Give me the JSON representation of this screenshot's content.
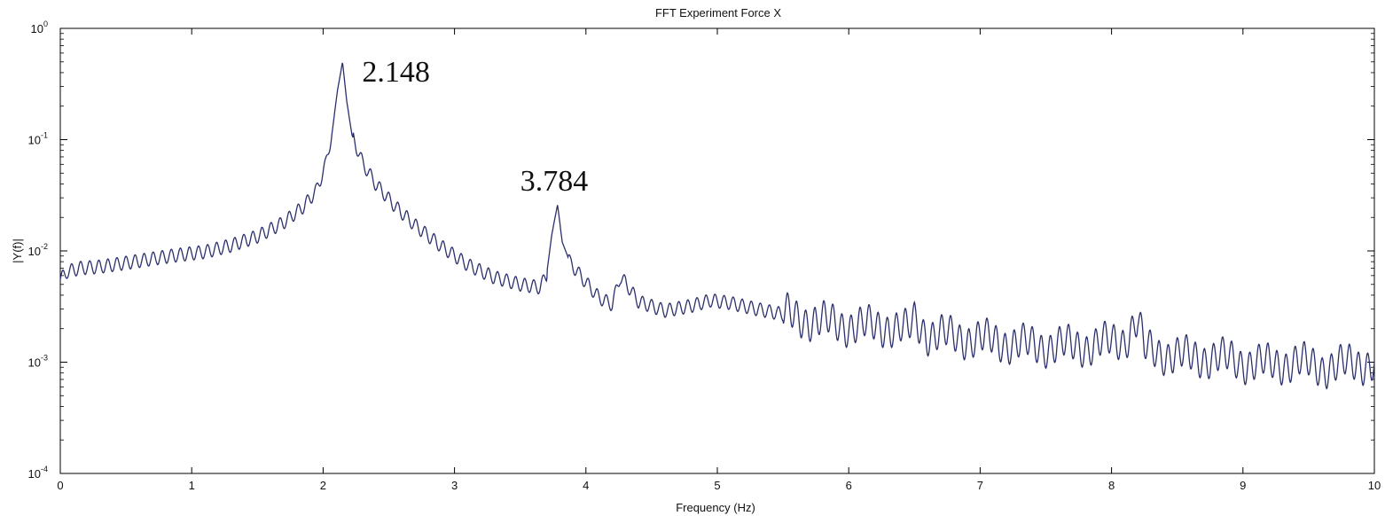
{
  "chart_data": {
    "type": "line",
    "title": "FFT Experiment Force X",
    "xlabel": "Frequency (Hz)",
    "ylabel": "|Y(f)|",
    "xlim": [
      0,
      10
    ],
    "ylim": [
      0.0001,
      1
    ],
    "yscale": "log",
    "grid": false,
    "line_color": "#2b2f6b",
    "x_ticks": [
      "0",
      "1",
      "2",
      "3",
      "4",
      "5",
      "6",
      "7",
      "8",
      "9",
      "10"
    ],
    "y_ticks": [
      {
        "base": "10",
        "exp": "0",
        "value": 1
      },
      {
        "base": "10",
        "exp": "-1",
        "value": 0.1
      },
      {
        "base": "10",
        "exp": "-2",
        "value": 0.01
      },
      {
        "base": "10",
        "exp": "-3",
        "value": 0.001
      },
      {
        "base": "10",
        "exp": "-4",
        "value": 0.0001
      }
    ],
    "annotations": [
      {
        "text": "2.148",
        "x": 2.148,
        "y": 0.5
      },
      {
        "text": "3.784",
        "x": 3.784,
        "y": 0.026
      }
    ],
    "series": [
      {
        "x": [
          0.0,
          0.05,
          0.15,
          0.3,
          0.5,
          0.7,
          0.9,
          1.1,
          1.3,
          1.5,
          1.7,
          1.85,
          1.95,
          2.02,
          2.07,
          2.11,
          2.148,
          2.18,
          2.22,
          2.3,
          2.4,
          2.55,
          2.7,
          2.9,
          3.1,
          3.3,
          3.5,
          3.65,
          3.7,
          3.74,
          3.784,
          3.82,
          3.88,
          4.0,
          4.1,
          4.2,
          4.26,
          4.3,
          4.4,
          4.6,
          4.8,
          4.95,
          5.1,
          5.3,
          5.5,
          5.7,
          5.9,
          6.1,
          6.3,
          6.45,
          6.5,
          6.6,
          6.8,
          7.0,
          7.2,
          7.4,
          7.6,
          7.8,
          8.0,
          8.1,
          8.2,
          8.25,
          8.4,
          8.6,
          8.8,
          9.0,
          9.2,
          9.4,
          9.6,
          9.8,
          10.0
        ],
        "y": [
          0.0055,
          0.0065,
          0.007,
          0.0072,
          0.0078,
          0.0085,
          0.0092,
          0.0098,
          0.0112,
          0.0135,
          0.018,
          0.025,
          0.035,
          0.06,
          0.12,
          0.28,
          0.5,
          0.22,
          0.11,
          0.062,
          0.04,
          0.025,
          0.017,
          0.011,
          0.0075,
          0.0058,
          0.005,
          0.0047,
          0.006,
          0.014,
          0.026,
          0.012,
          0.0078,
          0.0052,
          0.0038,
          0.0033,
          0.0058,
          0.0052,
          0.0035,
          0.0029,
          0.0032,
          0.0036,
          0.0034,
          0.003,
          0.0027,
          0.0024,
          0.0022,
          0.0021,
          0.0021,
          0.0019,
          0.0024,
          0.0018,
          0.0017,
          0.0016,
          0.0015,
          0.0014,
          0.0014,
          0.0014,
          0.0015,
          0.0016,
          0.0024,
          0.0013,
          0.0012,
          0.0011,
          0.0011,
          0.001,
          0.00095,
          0.001,
          0.0009,
          0.00095,
          0.001
        ]
      }
    ]
  }
}
